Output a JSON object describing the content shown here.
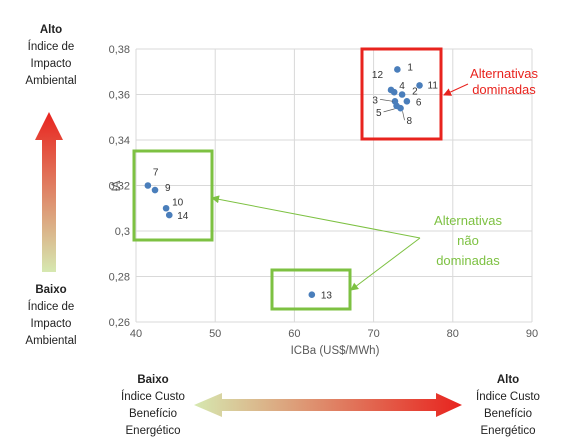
{
  "chart_data": {
    "type": "scatter",
    "xlabel": "ICBa (US$/MWh)",
    "ylabel": "IA",
    "xlim": [
      40,
      90
    ],
    "ylim": [
      0.26,
      0.38
    ],
    "x_ticks": [
      "40",
      "50",
      "60",
      "70",
      "80",
      "90"
    ],
    "y_ticks": [
      "0,26",
      "0,28",
      "0,3",
      "0,32",
      "0,34",
      "0,36",
      "0,38"
    ],
    "grid": true,
    "legend": "none",
    "marker_color": "#4a7ebb",
    "points": [
      {
        "label": "1",
        "x": 73.0,
        "y": 0.371
      },
      {
        "label": "2",
        "x": 73.6,
        "y": 0.36
      },
      {
        "label": "3",
        "x": 72.7,
        "y": 0.357
      },
      {
        "label": "4",
        "x": 72.6,
        "y": 0.361
      },
      {
        "label": "5",
        "x": 72.9,
        "y": 0.355
      },
      {
        "label": "6",
        "x": 74.2,
        "y": 0.357
      },
      {
        "label": "7",
        "x": 41.5,
        "y": 0.32
      },
      {
        "label": "8",
        "x": 73.4,
        "y": 0.354
      },
      {
        "label": "9",
        "x": 42.4,
        "y": 0.318
      },
      {
        "label": "10",
        "x": 43.8,
        "y": 0.31
      },
      {
        "label": "11",
        "x": 75.8,
        "y": 0.364
      },
      {
        "label": "12",
        "x": 72.2,
        "y": 0.362
      },
      {
        "label": "13",
        "x": 62.2,
        "y": 0.272
      },
      {
        "label": "14",
        "x": 44.2,
        "y": 0.307
      }
    ],
    "annotations": {
      "dominated": {
        "lines": [
          "Alternativas",
          "dominadas"
        ],
        "color": "#e8231e"
      },
      "non_dominated": {
        "lines": [
          "Alternativas",
          "não",
          "dominadas"
        ],
        "color": "#7dc142"
      }
    }
  },
  "left_axis": {
    "top": {
      "title": "Alto",
      "lines": [
        "Índice de",
        "Impacto",
        "Ambiental"
      ]
    },
    "bottom": {
      "title": "Baixo",
      "lines": [
        "Índice de",
        "Impacto",
        "Ambiental"
      ]
    }
  },
  "bottom_axis": {
    "left": {
      "title": "Baixo",
      "lines": [
        "Índice Custo",
        "Benefício",
        "Energético"
      ]
    },
    "right": {
      "title": "Alto",
      "lines": [
        "Índice Custo",
        "Benefício",
        "Energético"
      ]
    }
  },
  "colors": {
    "grid": "#d9d9d9",
    "tick_text": "#595959",
    "red": "#e8231e",
    "green": "#7dc142",
    "gradient_green": "#d6e8b0",
    "gradient_red": "#e8231e"
  }
}
